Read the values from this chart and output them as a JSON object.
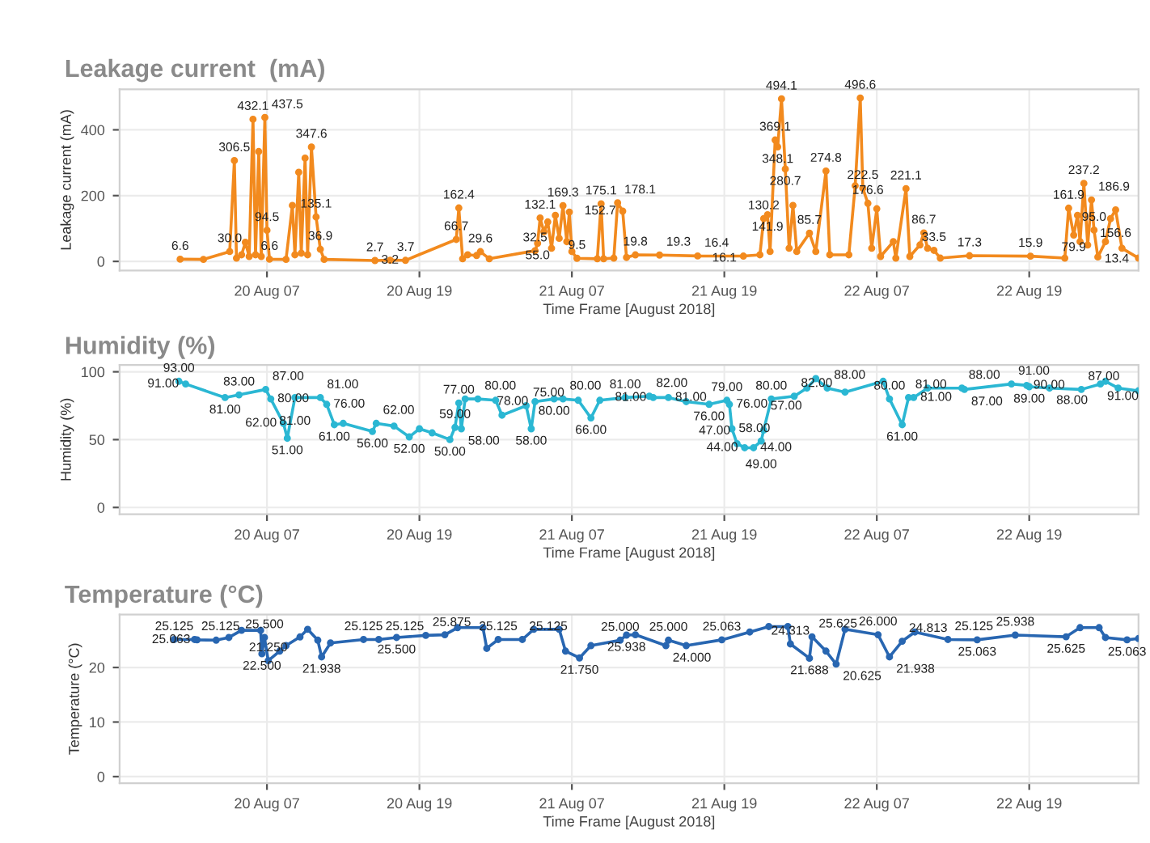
{
  "chart_data": [
    {
      "type": "line",
      "title": "Leakage current  (mA)",
      "ylabel": "Leakage current (mA)",
      "xlabel": "Time Frame [August 2018]",
      "marker": "circle",
      "line_style": "solid",
      "grid": true,
      "xlim": [
        "2018-08-19T19:24",
        "2018-08-23T03:36"
      ],
      "ylim": [
        -28,
        523
      ],
      "yticks": [
        0,
        200,
        400
      ],
      "xticks": [
        {
          "value": "2018-08-20T07:00",
          "label": "20 Aug 07"
        },
        {
          "value": "2018-08-20T19:00",
          "label": "20 Aug 19"
        },
        {
          "value": "2018-08-21T07:00",
          "label": "21 Aug 07"
        },
        {
          "value": "2018-08-21T19:00",
          "label": "21 Aug 19"
        },
        {
          "value": "2018-08-22T07:00",
          "label": "22 Aug 07"
        },
        {
          "value": "2018-08-22T19:00",
          "label": "22 Aug 19"
        }
      ],
      "x": [
        "2018-08-20T00:10",
        "2018-08-20T02:00",
        "2018-08-20T04:04",
        "2018-08-20T04:26",
        "2018-08-20T04:36",
        "2018-08-20T05:00",
        "2018-08-20T05:18",
        "2018-08-20T05:36",
        "2018-08-20T05:54",
        "2018-08-20T06:06",
        "2018-08-20T06:21",
        "2018-08-20T06:33",
        "2018-08-20T06:50",
        "2018-08-20T07:00",
        "2018-08-20T07:12",
        "2018-08-20T08:30",
        "2018-08-20T09:00",
        "2018-08-20T09:12",
        "2018-08-20T09:30",
        "2018-08-20T09:42",
        "2018-08-20T10:00",
        "2018-08-20T10:12",
        "2018-08-20T10:30",
        "2018-08-20T10:52",
        "2018-08-20T11:12",
        "2018-08-20T11:30",
        "2018-08-20T15:30",
        "2018-08-20T16:42",
        "2018-08-20T17:54",
        "2018-08-20T21:54",
        "2018-08-20T22:06",
        "2018-08-20T22:24",
        "2018-08-20T22:48",
        "2018-08-20T23:30",
        "2018-08-20T23:48",
        "2018-08-21T00:30",
        "2018-08-21T04:06",
        "2018-08-21T04:18",
        "2018-08-21T04:30",
        "2018-08-21T04:48",
        "2018-08-21T05:06",
        "2018-08-21T05:24",
        "2018-08-21T05:42",
        "2018-08-21T06:00",
        "2018-08-21T06:18",
        "2018-08-21T06:36",
        "2018-08-21T06:48",
        "2018-08-21T07:00",
        "2018-08-21T07:24",
        "2018-08-21T09:00",
        "2018-08-21T09:18",
        "2018-08-21T09:30",
        "2018-08-21T10:18",
        "2018-08-21T10:36",
        "2018-08-21T11:00",
        "2018-08-21T11:18",
        "2018-08-21T12:00",
        "2018-08-21T13:54",
        "2018-08-21T16:54",
        "2018-08-21T20:30",
        "2018-08-21T21:48",
        "2018-08-21T22:06",
        "2018-08-21T22:24",
        "2018-08-21T22:36",
        "2018-08-21T23:00",
        "2018-08-21T23:12",
        "2018-08-21T23:30",
        "2018-08-21T23:48",
        "2018-08-22T00:06",
        "2018-08-22T00:24",
        "2018-08-22T00:42",
        "2018-08-22T01:42",
        "2018-08-22T02:12",
        "2018-08-22T03:00",
        "2018-08-22T03:18",
        "2018-08-22T04:48",
        "2018-08-22T05:18",
        "2018-08-22T05:42",
        "2018-08-22T05:54",
        "2018-08-22T06:18",
        "2018-08-22T06:36",
        "2018-08-22T07:00",
        "2018-08-22T07:18",
        "2018-08-22T08:18",
        "2018-08-22T08:30",
        "2018-08-22T09:18",
        "2018-08-22T09:36",
        "2018-08-22T10:24",
        "2018-08-22T10:42",
        "2018-08-22T11:00",
        "2018-08-22T11:30",
        "2018-08-22T12:00",
        "2018-08-22T14:18",
        "2018-08-22T19:06",
        "2018-08-22T21:48",
        "2018-08-22T22:06",
        "2018-08-22T22:30",
        "2018-08-22T22:48",
        "2018-08-22T23:00",
        "2018-08-22T23:18",
        "2018-08-22T23:36",
        "2018-08-22T23:54",
        "2018-08-23T00:06",
        "2018-08-23T00:24",
        "2018-08-23T01:00",
        "2018-08-23T01:24",
        "2018-08-23T01:48",
        "2018-08-23T02:18",
        "2018-08-23T03:36"
      ],
      "series": [
        {
          "color": "#f28a1e",
          "values": [
            6.6,
            6,
            30.0,
            306.5,
            10,
            20,
            58,
            15,
            432.1,
            20,
            334,
            15,
            437.5,
            94.5,
            6.6,
            6,
            170,
            20,
            271,
            25,
            314,
            20,
            347.6,
            135.1,
            36.9,
            6,
            2.7,
            3.7,
            3.2,
            66.7,
            162.4,
            8,
            20,
            18,
            29.6,
            8,
            32.5,
            55.0,
            132.1,
            90,
            120,
            40,
            140,
            70,
            169.3,
            60,
            150,
            30,
            9.5,
            8,
            175.1,
            8,
            10,
            178.1,
            152.7,
            12,
            19.8,
            19.3,
            16.4,
            16.1,
            20,
            130.2,
            141.9,
            30,
            369.1,
            348.1,
            494.1,
            280.7,
            40,
            170,
            30,
            85.7,
            30,
            274.8,
            20,
            20,
            230,
            496.6,
            222.5,
            176.6,
            40,
            160,
            15,
            60,
            10,
            221.1,
            15,
            50,
            86.7,
            40,
            33.5,
            10,
            17.3,
            15.9,
            10,
            161.9,
            79.9,
            140,
            60,
            237.2,
            50,
            186.9,
            95.0,
            13.4,
            60,
            130,
            156.6,
            40,
            10
          ],
          "value_labels": [
            "6.6",
            null,
            "30.0",
            "306.5",
            null,
            null,
            null,
            null,
            "432.1",
            null,
            null,
            null,
            "437.5",
            "94.5",
            "6.6",
            null,
            null,
            null,
            null,
            null,
            null,
            null,
            "347.6",
            "135.1",
            "36.9",
            null,
            "2.7",
            "3.7",
            "3.2",
            "66.7",
            "162.4",
            null,
            null,
            null,
            "29.6",
            null,
            "32.5",
            "55.0",
            "132.1",
            null,
            null,
            null,
            null,
            null,
            "169.3",
            null,
            null,
            null,
            "9.5",
            null,
            "175.1",
            null,
            null,
            "178.1",
            "152.7",
            null,
            "19.8",
            "19.3",
            "16.4",
            "16.1",
            null,
            "130.2",
            "141.9",
            null,
            "369.1",
            "348.1",
            "494.1",
            "280.7",
            null,
            null,
            null,
            "85.7",
            null,
            "274.8",
            null,
            null,
            null,
            "496.6",
            "222.5",
            "176.6",
            null,
            null,
            null,
            null,
            null,
            "221.1",
            null,
            null,
            "86.7",
            null,
            "33.5",
            null,
            "17.3",
            "15.9",
            null,
            "161.9",
            "79.9",
            null,
            null,
            "237.2",
            null,
            "186.9",
            "95.0",
            "13.4",
            null,
            null,
            "156.6",
            null,
            null
          ]
        }
      ]
    },
    {
      "type": "line",
      "title": "Humidity (%)",
      "ylabel": "Humidity (%)",
      "xlabel": "Time Frame [August 2018]",
      "marker": "circle",
      "line_style": "solid",
      "grid": true,
      "xlim": [
        "2018-08-19T19:24",
        "2018-08-23T03:36"
      ],
      "ylim": [
        -5,
        105
      ],
      "yticks": [
        0,
        50,
        100
      ],
      "xticks": [
        {
          "value": "2018-08-20T07:00",
          "label": "20 Aug 07"
        },
        {
          "value": "2018-08-20T19:00",
          "label": "20 Aug 19"
        },
        {
          "value": "2018-08-21T07:00",
          "label": "21 Aug 07"
        },
        {
          "value": "2018-08-21T19:00",
          "label": "21 Aug 19"
        },
        {
          "value": "2018-08-22T07:00",
          "label": "22 Aug 07"
        },
        {
          "value": "2018-08-22T19:00",
          "label": "22 Aug 19"
        }
      ],
      "x": [
        "2018-08-20T00:04",
        "2018-08-20T00:36",
        "2018-08-20T03:42",
        "2018-08-20T04:48",
        "2018-08-20T06:54",
        "2018-08-20T07:18",
        "2018-08-20T08:18",
        "2018-08-20T08:36",
        "2018-08-20T09:12",
        "2018-08-20T11:12",
        "2018-08-20T11:42",
        "2018-08-20T12:18",
        "2018-08-20T13:00",
        "2018-08-20T15:18",
        "2018-08-20T15:36",
        "2018-08-20T17:00",
        "2018-08-20T18:12",
        "2018-08-20T19:00",
        "2018-08-20T20:00",
        "2018-08-20T21:24",
        "2018-08-20T21:48",
        "2018-08-20T22:06",
        "2018-08-20T22:18",
        "2018-08-20T22:36",
        "2018-08-20T23:36",
        "2018-08-21T01:00",
        "2018-08-21T01:30",
        "2018-08-21T03:24",
        "2018-08-21T03:48",
        "2018-08-21T04:06",
        "2018-08-21T05:36",
        "2018-08-21T06:18",
        "2018-08-21T07:30",
        "2018-08-21T08:30",
        "2018-08-21T09:12",
        "2018-08-21T11:12",
        "2018-08-21T13:06",
        "2018-08-21T13:24",
        "2018-08-21T14:36",
        "2018-08-21T16:00",
        "2018-08-21T17:48",
        "2018-08-21T19:12",
        "2018-08-21T19:24",
        "2018-08-21T19:36",
        "2018-08-21T20:00",
        "2018-08-21T20:36",
        "2018-08-21T21:18",
        "2018-08-21T21:54",
        "2018-08-21T22:06",
        "2018-08-21T22:42",
        "2018-08-22T00:30",
        "2018-08-22T01:30",
        "2018-08-22T02:12",
        "2018-08-22T03:06",
        "2018-08-22T04:30",
        "2018-08-22T07:30",
        "2018-08-22T08:00",
        "2018-08-22T09:00",
        "2018-08-22T09:30",
        "2018-08-22T09:54",
        "2018-08-22T11:00",
        "2018-08-22T13:42",
        "2018-08-22T13:54",
        "2018-08-22T17:36",
        "2018-08-22T18:48",
        "2018-08-22T19:00",
        "2018-08-22T20:36",
        "2018-08-22T23:06",
        "2018-08-23T00:36",
        "2018-08-23T01:00",
        "2018-08-23T02:00",
        "2018-08-23T03:36"
      ],
      "series": [
        {
          "color": "#2bb7d3",
          "values": [
            93.0,
            91.0,
            81.0,
            83.0,
            87.0,
            80.0,
            62.0,
            51.0,
            81.0,
            81.0,
            76.0,
            61.0,
            62,
            56.0,
            62.0,
            60,
            52.0,
            58,
            55,
            50.0,
            59.0,
            77.0,
            58.0,
            80,
            80.0,
            79,
            68,
            75.0,
            58.0,
            78.0,
            80.0,
            80.0,
            79,
            66.0,
            79,
            81.0,
            82.0,
            81.0,
            81.0,
            78,
            76.0,
            79.0,
            76.0,
            58.0,
            47.0,
            44.0,
            44.0,
            49.0,
            57.0,
            80.0,
            82.0,
            88,
            95,
            88.0,
            85,
            93,
            80.0,
            61.0,
            81.0,
            81.0,
            88,
            88.0,
            87.0,
            91.0,
            90.0,
            89.0,
            88.0,
            87.0,
            91.0,
            93,
            88,
            86
          ],
          "value_labels": [
            "93.00",
            "91.00",
            "81.00",
            "83.00",
            "87.00",
            "80.00",
            "62.00",
            "51.00",
            "81.00",
            "81.00",
            "76.00",
            "61.00",
            null,
            "56.00",
            "62.00",
            null,
            "52.00",
            null,
            null,
            "50.00",
            "59.00",
            "77.00",
            "58.00",
            null,
            "80.00",
            null,
            null,
            "75.00",
            "58.00",
            "78.00",
            "80.00",
            "80.00",
            null,
            "66.00",
            null,
            "81.00",
            "82.00",
            "81.00",
            "81.00",
            null,
            "76.00",
            "79.00",
            "76.00",
            "58.00",
            "47.00",
            "44.00",
            "44.00",
            "49.00",
            "57.00",
            "80.00",
            "82.00",
            null,
            null,
            "88.00",
            null,
            null,
            "80.00",
            "61.00",
            "81.00",
            "81.00",
            null,
            "88.00",
            "87.00",
            "91.00",
            "90.00",
            "89.00",
            "88.00",
            "87.00",
            "91.00",
            null,
            null,
            null
          ]
        }
      ]
    },
    {
      "type": "line",
      "title": "Temperature (°C)",
      "ylabel": "Temperature (°C)",
      "xlabel": "Time Frame [August 2018]",
      "marker": "circle",
      "line_style": "solid",
      "grid": true,
      "xlim": [
        "2018-08-19T19:24",
        "2018-08-23T03:36"
      ],
      "ylim": [
        -1.2,
        29.7
      ],
      "yticks": [
        0,
        10,
        20
      ],
      "xticks": [
        {
          "value": "2018-08-20T07:00",
          "label": "20 Aug 07"
        },
        {
          "value": "2018-08-20T19:00",
          "label": "20 Aug 19"
        },
        {
          "value": "2018-08-21T07:00",
          "label": "21 Aug 07"
        },
        {
          "value": "2018-08-21T19:00",
          "label": "21 Aug 19"
        },
        {
          "value": "2018-08-22T07:00",
          "label": "22 Aug 07"
        },
        {
          "value": "2018-08-22T19:00",
          "label": "22 Aug 19"
        }
      ],
      "x": [
        "2018-08-19T23:42",
        "2018-08-20T01:18",
        "2018-08-20T01:30",
        "2018-08-20T03:00",
        "2018-08-20T04:00",
        "2018-08-20T05:00",
        "2018-08-20T06:30",
        "2018-08-20T06:36",
        "2018-08-20T06:48",
        "2018-08-20T07:06",
        "2018-08-20T08:00",
        "2018-08-20T08:30",
        "2018-08-20T09:36",
        "2018-08-20T10:12",
        "2018-08-20T11:00",
        "2018-08-20T11:18",
        "2018-08-20T12:00",
        "2018-08-20T14:36",
        "2018-08-20T15:48",
        "2018-08-20T17:12",
        "2018-08-20T19:30",
        "2018-08-20T21:00",
        "2018-08-20T22:00",
        "2018-08-21T00:00",
        "2018-08-21T00:18",
        "2018-08-21T01:12",
        "2018-08-21T03:06",
        "2018-08-21T04:00",
        "2018-08-21T06:00",
        "2018-08-21T06:30",
        "2018-08-21T07:36",
        "2018-08-21T08:30",
        "2018-08-21T10:48",
        "2018-08-21T11:18",
        "2018-08-21T12:00",
        "2018-08-21T14:24",
        "2018-08-21T14:36",
        "2018-08-21T16:00",
        "2018-08-21T18:48",
        "2018-08-21T21:00",
        "2018-08-21T22:30",
        "2018-08-22T00:00",
        "2018-08-22T00:12",
        "2018-08-22T01:42",
        "2018-08-22T01:54",
        "2018-08-22T03:00",
        "2018-08-22T03:48",
        "2018-08-22T04:30",
        "2018-08-22T07:06",
        "2018-08-22T08:00",
        "2018-08-22T09:00",
        "2018-08-22T10:00",
        "2018-08-22T12:36",
        "2018-08-22T14:54",
        "2018-08-22T17:54",
        "2018-08-22T21:54",
        "2018-08-22T23:00",
        "2018-08-23T00:30",
        "2018-08-23T01:00",
        "2018-08-23T02:42",
        "2018-08-23T03:36"
      ],
      "series": [
        {
          "color": "#2866b1",
          "values": [
            25.125,
            25.125,
            25.063,
            25,
            25.5,
            26.8,
            26.8,
            22.5,
            25.5,
            21.25,
            23,
            24,
            25.6,
            27,
            25,
            21.938,
            24.5,
            25.125,
            25.125,
            25.5,
            25.875,
            26,
            27.3,
            27.3,
            23.5,
            25.125,
            25.125,
            27,
            27,
            23,
            21.75,
            24,
            25.0,
            25.938,
            26,
            24.0,
            25.0,
            24,
            25.063,
            26.5,
            27.5,
            27.5,
            24.313,
            21.688,
            25.625,
            23,
            20.625,
            27,
            26.0,
            21.938,
            24.813,
            26.5,
            25.125,
            25.063,
            25.938,
            25.625,
            27.3,
            27.3,
            25.5,
            25.063,
            25.3
          ],
          "value_labels": [
            "25.125",
            "25.125",
            "25.063",
            null,
            null,
            null,
            null,
            "22.500",
            "25.500",
            "21.250",
            null,
            null,
            null,
            null,
            null,
            "21.938",
            null,
            "25.125",
            "25.125",
            "25.500",
            "25.875",
            null,
            null,
            null,
            null,
            "25.125",
            "25.125",
            null,
            null,
            null,
            "21.750",
            null,
            "25.000",
            "25.938",
            null,
            "24.000",
            "25.000",
            null,
            "25.063",
            null,
            null,
            null,
            "24.313",
            "21.688",
            "25.625",
            null,
            "20.625",
            null,
            "26.000",
            "21.938",
            "24.813",
            null,
            "25.125",
            "25.063",
            "25.938",
            "25.625",
            null,
            null,
            null,
            "25.063",
            null
          ]
        }
      ]
    }
  ]
}
